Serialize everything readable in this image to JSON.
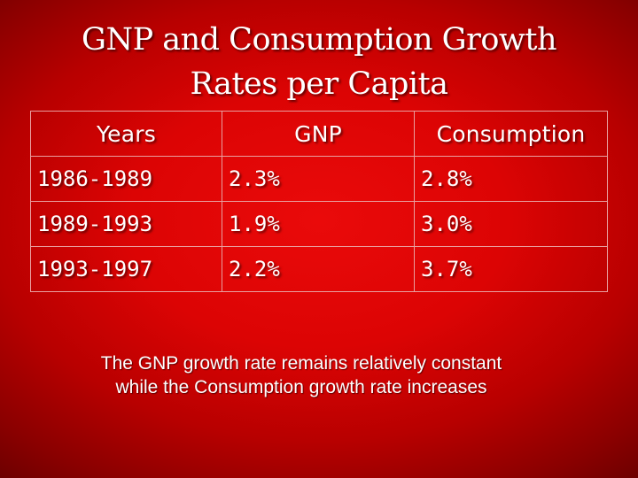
{
  "title": {
    "line1": "GNP and Consumption Growth",
    "line2": "Rates per Capita"
  },
  "table": {
    "headers": [
      "Years",
      "GNP",
      "Consumption"
    ],
    "rows": [
      [
        "1986-1989",
        "2.3%",
        "2.8%"
      ],
      [
        "1989-1993",
        "1.9%",
        "3.0%"
      ],
      [
        "1993-1997",
        "2.2%",
        "3.7%"
      ]
    ]
  },
  "caption": {
    "line1": "The GNP growth rate remains relatively constant",
    "line2": "while the Consumption growth rate increases"
  },
  "colors": {
    "background_center": "#e60808",
    "background_edge": "#6e0000",
    "text": "#ffffff",
    "table_border": "#e9a0a0"
  }
}
